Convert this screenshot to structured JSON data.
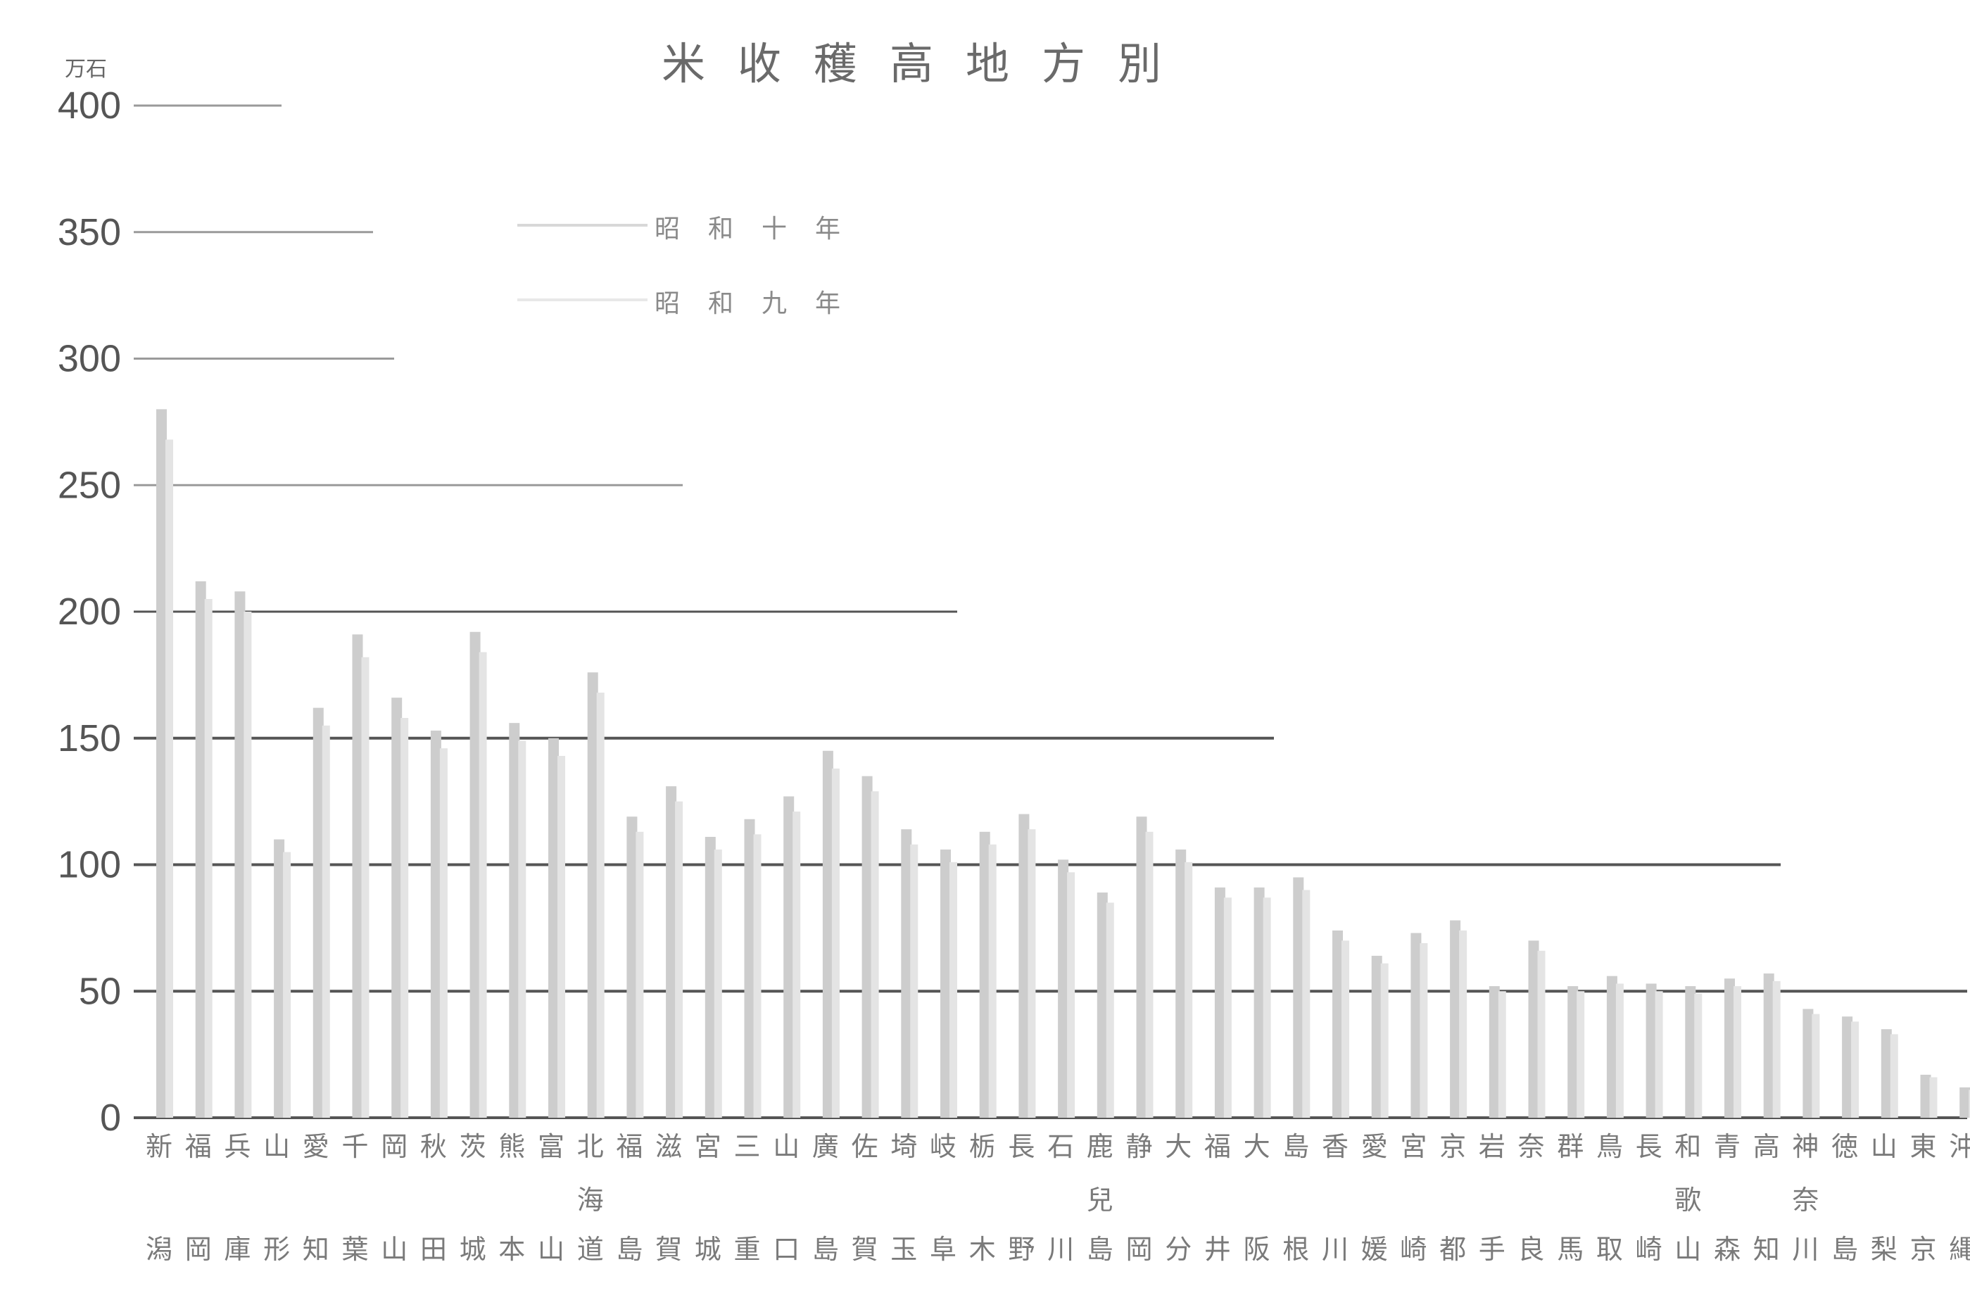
{
  "title": "米收穫高地方別",
  "chart_data": {
    "type": "bar",
    "title": "米收穫高地方別",
    "unit": "万石",
    "ylim": [
      0,
      400
    ],
    "yticks": [
      0,
      50,
      100,
      150,
      200,
      250,
      300,
      350,
      400
    ],
    "grid": true,
    "legend_position": "top-center",
    "categories": [
      "新潟",
      "福岡",
      "兵庫",
      "山形",
      "愛知",
      "千葉",
      "岡山",
      "秋田",
      "茨城",
      "熊本",
      "富山",
      "北海道",
      "福島",
      "滋賀",
      "宮城",
      "三重",
      "山口",
      "廣島",
      "佐賀",
      "埼玉",
      "岐阜",
      "栃木",
      "長野",
      "石川",
      "鹿兒島",
      "静岡",
      "大分",
      "福井",
      "大阪",
      "島根",
      "香川",
      "愛媛",
      "宮崎",
      "京都",
      "岩手",
      "奈良",
      "群馬",
      "鳥取",
      "長崎",
      "和歌山",
      "青森",
      "高知",
      "神奈川",
      "徳島",
      "山梨",
      "東京",
      "沖縄"
    ],
    "category_labels": [
      [
        "新",
        "潟"
      ],
      [
        "福",
        "岡"
      ],
      [
        "兵",
        "庫"
      ],
      [
        "山",
        "形"
      ],
      [
        "愛",
        "知"
      ],
      [
        "千",
        "葉"
      ],
      [
        "岡",
        "山"
      ],
      [
        "秋",
        "田"
      ],
      [
        "茨",
        "城"
      ],
      [
        "熊",
        "本"
      ],
      [
        "富",
        "山"
      ],
      [
        "北",
        "海",
        "道"
      ],
      [
        "福",
        "島"
      ],
      [
        "滋",
        "賀"
      ],
      [
        "宮",
        "城"
      ],
      [
        "三",
        "重"
      ],
      [
        "山",
        "口"
      ],
      [
        "廣",
        "島"
      ],
      [
        "佐",
        "賀"
      ],
      [
        "埼",
        "玉"
      ],
      [
        "岐",
        "阜"
      ],
      [
        "栃",
        "木"
      ],
      [
        "長",
        "野"
      ],
      [
        "石",
        "川"
      ],
      [
        "鹿",
        "兒",
        "島"
      ],
      [
        "静",
        "岡"
      ],
      [
        "大",
        "分"
      ],
      [
        "福",
        "井"
      ],
      [
        "大",
        "阪"
      ],
      [
        "島",
        "根"
      ],
      [
        "香",
        "川"
      ],
      [
        "愛",
        "媛"
      ],
      [
        "宮",
        "崎"
      ],
      [
        "京",
        "都"
      ],
      [
        "岩",
        "手"
      ],
      [
        "奈",
        "良"
      ],
      [
        "群",
        "馬"
      ],
      [
        "鳥",
        "取"
      ],
      [
        "長",
        "崎"
      ],
      [
        "和",
        "歌",
        "山"
      ],
      [
        "青",
        "森"
      ],
      [
        "高",
        "知"
      ],
      [
        "神",
        "奈",
        "川"
      ],
      [
        "徳",
        "島"
      ],
      [
        "山",
        "梨"
      ],
      [
        "東",
        "京"
      ],
      [
        "沖",
        "縄"
      ]
    ],
    "series": [
      {
        "name": "昭和十年",
        "color": "#cdcdcd",
        "values": [
          280,
          212,
          208,
          110,
          162,
          191,
          166,
          153,
          192,
          156,
          150,
          176,
          119,
          131,
          111,
          118,
          127,
          145,
          135,
          114,
          106,
          113,
          120,
          102,
          89,
          119,
          106,
          91,
          91,
          95,
          74,
          64,
          73,
          78,
          52,
          70,
          52,
          56,
          53,
          52,
          55,
          57,
          43,
          40,
          35,
          17,
          12
        ]
      },
      {
        "name": "昭和九年",
        "color": "#e4e4e4",
        "values": [
          268,
          205,
          200,
          105,
          155,
          182,
          158,
          146,
          184,
          149,
          143,
          168,
          113,
          125,
          106,
          112,
          121,
          138,
          129,
          108,
          101,
          108,
          114,
          97,
          85,
          113,
          101,
          87,
          87,
          90,
          70,
          61,
          69,
          74,
          50,
          66,
          50,
          53,
          50,
          49,
          52,
          54,
          41,
          38,
          33,
          16,
          11
        ]
      }
    ]
  }
}
